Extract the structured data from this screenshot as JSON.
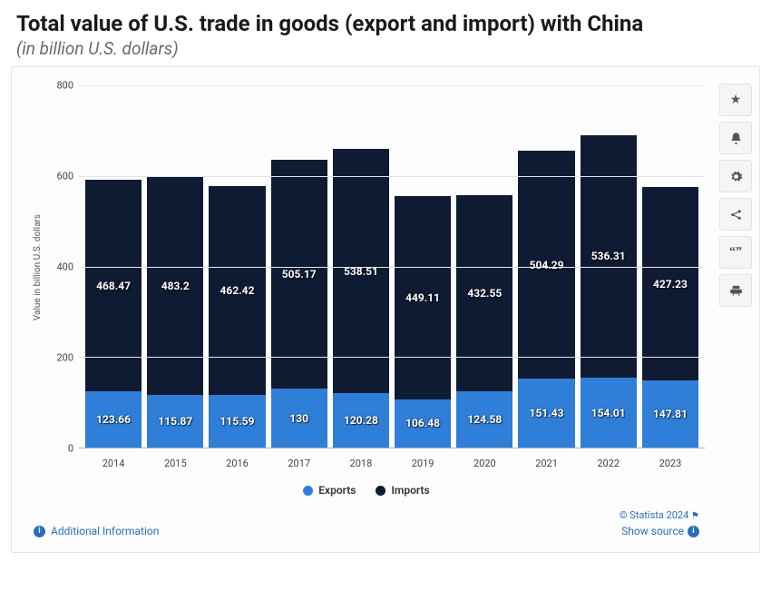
{
  "header": {
    "title": "Total value of U.S. trade in goods (export and import) with China",
    "subtitle": "(in billion U.S. dollars)"
  },
  "chart": {
    "type": "stacked-bar",
    "y_label": "Value in billion U.S. dollars",
    "y_max": 800,
    "y_ticks": [
      0,
      200,
      400,
      600,
      800
    ],
    "categories": [
      "2014",
      "2015",
      "2016",
      "2017",
      "2018",
      "2019",
      "2020",
      "2021",
      "2022",
      "2023"
    ],
    "series": [
      {
        "name": "Exports",
        "color": "#2f7ed8",
        "values": [
          123.66,
          115.87,
          115.59,
          130,
          120.28,
          106.48,
          124.58,
          151.43,
          154.01,
          147.81
        ]
      },
      {
        "name": "Imports",
        "color": "#0f1b33",
        "values": [
          468.47,
          483.2,
          462.42,
          505.17,
          538.51,
          449.11,
          432.55,
          504.29,
          536.31,
          427.23
        ]
      }
    ],
    "background_color": "#fdfdfd",
    "grid_color": "#e6e6e6",
    "value_label_color": "#ffffff"
  },
  "tools": [
    "star",
    "bell",
    "gear",
    "share",
    "quote",
    "print"
  ],
  "footer": {
    "additional_info": "Additional Information",
    "copyright": "© Statista 2024",
    "show_source": "Show source"
  }
}
